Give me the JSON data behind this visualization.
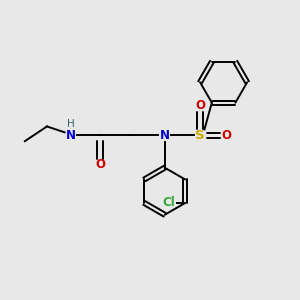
{
  "background_color": "#e8e8e8",
  "bond_color": "#000000",
  "atom_colors": {
    "N": "#0000cc",
    "O": "#cc0000",
    "S": "#ccaa00",
    "Cl": "#33aa33",
    "H": "#336666",
    "C": "#000000"
  },
  "figsize": [
    3.0,
    3.0
  ],
  "dpi": 100
}
